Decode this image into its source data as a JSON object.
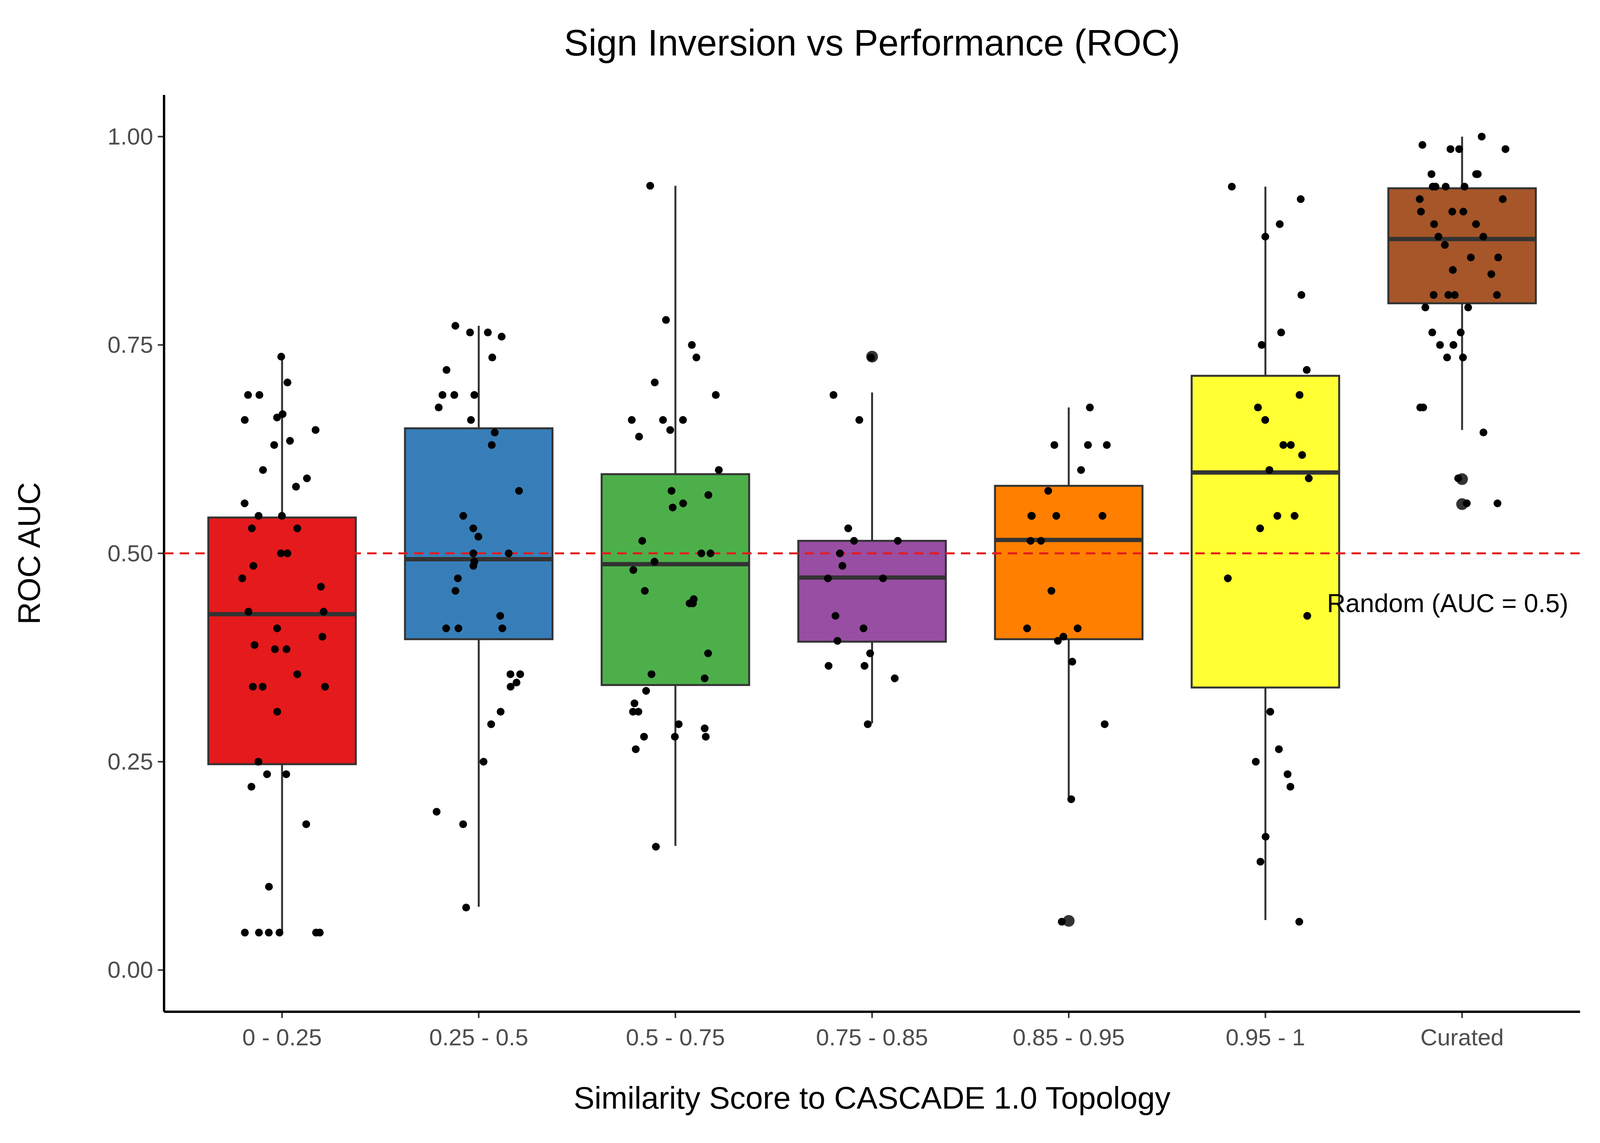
{
  "chart_data": {
    "type": "box",
    "title": "Sign Inversion vs Performance (ROC)",
    "x_label": "Similarity Score to CASCADE 1.0 Topology",
    "y_label": "ROC AUC",
    "categories": [
      "0 - 0.25",
      "0.25 - 0.5",
      "0.5 - 0.75",
      "0.75 - 0.85",
      "0.85 - 0.95",
      "0.95 - 1",
      "Curated"
    ],
    "colors": [
      "#E41A1C",
      "#377EB8",
      "#4DAF4A",
      "#984EA3",
      "#FF7F00",
      "#FFFF33",
      "#A65628"
    ],
    "ylim": [
      -0.05,
      1.05
    ],
    "yticks": [
      {
        "value": 0,
        "label": "0.00"
      },
      {
        "value": 0.25,
        "label": "0.25"
      },
      {
        "value": 0.5,
        "label": "0.50"
      },
      {
        "value": 0.75,
        "label": "0.75"
      },
      {
        "value": 1,
        "label": "1.00"
      }
    ],
    "grid": false,
    "reference_line": {
      "y": 0.5,
      "color": "#E41A1C",
      "line_style": "dashed",
      "label": "Random (AUC = 0.5)"
    },
    "boxes": [
      {
        "q1": 0.247,
        "median": 0.427,
        "q3": 0.543,
        "whisker_low": 0.045,
        "whisker_high": 0.736,
        "outliers": [],
        "points": [
          0.736,
          0.705,
          0.69,
          0.69,
          0.663,
          0.667,
          0.66,
          0.648,
          0.635,
          0.63,
          0.6,
          0.59,
          0.58,
          0.56,
          0.545,
          0.545,
          0.53,
          0.53,
          0.5,
          0.5,
          0.485,
          0.47,
          0.46,
          0.43,
          0.43,
          0.41,
          0.4,
          0.39,
          0.385,
          0.385,
          0.355,
          0.34,
          0.34,
          0.34,
          0.31,
          0.25,
          0.235,
          0.235,
          0.22,
          0.175,
          0.1,
          0.045,
          0.045,
          0.045,
          0.045,
          0.045,
          0.045
        ]
      },
      {
        "q1": 0.397,
        "median": 0.493,
        "q3": 0.65,
        "whisker_low": 0.076,
        "whisker_high": 0.773,
        "outliers": [],
        "points": [
          0.773,
          0.765,
          0.765,
          0.76,
          0.735,
          0.72,
          0.69,
          0.69,
          0.69,
          0.675,
          0.66,
          0.645,
          0.63,
          0.575,
          0.545,
          0.53,
          0.52,
          0.5,
          0.5,
          0.49,
          0.485,
          0.47,
          0.455,
          0.425,
          0.41,
          0.41,
          0.41,
          0.355,
          0.355,
          0.345,
          0.34,
          0.31,
          0.295,
          0.25,
          0.19,
          0.175,
          0.075
        ]
      },
      {
        "q1": 0.342,
        "median": 0.487,
        "q3": 0.595,
        "whisker_low": 0.149,
        "whisker_high": 0.941,
        "outliers": [],
        "points": [
          0.941,
          0.78,
          0.75,
          0.735,
          0.705,
          0.69,
          0.66,
          0.66,
          0.66,
          0.648,
          0.64,
          0.6,
          0.575,
          0.57,
          0.56,
          0.555,
          0.515,
          0.5,
          0.5,
          0.49,
          0.48,
          0.455,
          0.445,
          0.44,
          0.44,
          0.38,
          0.355,
          0.35,
          0.335,
          0.32,
          0.31,
          0.31,
          0.295,
          0.29,
          0.28,
          0.28,
          0.28,
          0.265,
          0.148
        ]
      },
      {
        "q1": 0.394,
        "median": 0.471,
        "q3": 0.515,
        "whisker_low": 0.296,
        "whisker_high": 0.693,
        "outliers": [
          0.736
        ],
        "points": [
          0.735,
          0.69,
          0.66,
          0.53,
          0.515,
          0.515,
          0.5,
          0.485,
          0.47,
          0.47,
          0.425,
          0.41,
          0.395,
          0.38,
          0.365,
          0.365,
          0.35,
          0.295
        ]
      },
      {
        "q1": 0.397,
        "median": 0.516,
        "q3": 0.581,
        "whisker_low": 0.208,
        "whisker_high": 0.675,
        "outliers": [
          0.059
        ],
        "points": [
          0.675,
          0.63,
          0.63,
          0.63,
          0.6,
          0.575,
          0.545,
          0.545,
          0.545,
          0.545,
          0.515,
          0.515,
          0.455,
          0.41,
          0.41,
          0.4,
          0.395,
          0.37,
          0.295,
          0.205,
          0.058
        ]
      },
      {
        "q1": 0.339,
        "median": 0.597,
        "q3": 0.713,
        "whisker_low": 0.06,
        "whisker_high": 0.94,
        "outliers": [],
        "points": [
          0.94,
          0.925,
          0.895,
          0.88,
          0.81,
          0.765,
          0.75,
          0.72,
          0.69,
          0.675,
          0.66,
          0.63,
          0.63,
          0.618,
          0.6,
          0.59,
          0.545,
          0.545,
          0.53,
          0.47,
          0.425,
          0.31,
          0.265,
          0.25,
          0.235,
          0.22,
          0.16,
          0.13,
          0.058
        ]
      },
      {
        "q1": 0.8,
        "median": 0.877,
        "q3": 0.938,
        "whisker_low": 0.648,
        "whisker_high": 1.0,
        "outliers": [
          0.589,
          0.559
        ],
        "points": [
          1.0,
          0.99,
          0.985,
          0.985,
          0.985,
          0.955,
          0.955,
          0.955,
          0.94,
          0.94,
          0.94,
          0.94,
          0.925,
          0.925,
          0.91,
          0.91,
          0.91,
          0.895,
          0.895,
          0.88,
          0.88,
          0.87,
          0.855,
          0.855,
          0.84,
          0.835,
          0.81,
          0.81,
          0.81,
          0.81,
          0.795,
          0.795,
          0.765,
          0.765,
          0.75,
          0.75,
          0.735,
          0.735,
          0.675,
          0.675,
          0.645,
          0.59,
          0.56,
          0.56
        ]
      }
    ]
  }
}
